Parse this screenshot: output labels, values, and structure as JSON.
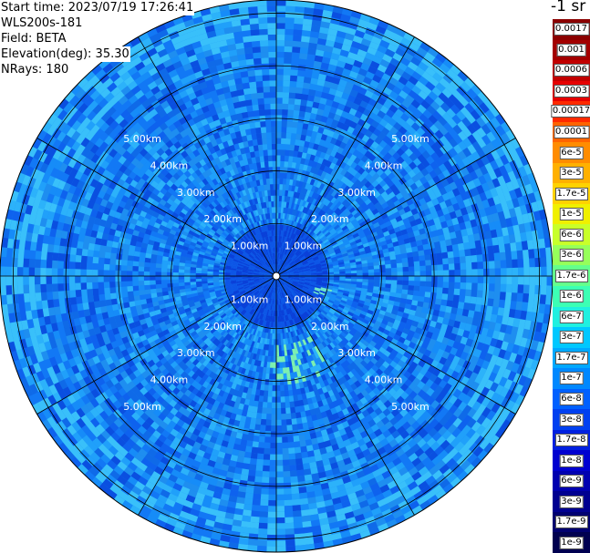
{
  "info": {
    "start_time": "Start time: 2023/07/19 17:26:41",
    "instrument": "WLS200s-181",
    "field": "Field: BETA",
    "elevation": "Elevation(deg): 35.30",
    "nrays": "NRays: 180"
  },
  "chart_data": {
    "type": "polar_ppi_heatmap",
    "field": "BETA",
    "units": "-1 sr",
    "nrays": 180,
    "elevation_deg": 35.3,
    "range_rings_km": [
      1,
      2,
      3,
      4,
      5
    ],
    "range_ring_labels": [
      "1.00km",
      "2.00km",
      "3.00km",
      "4.00km",
      "5.00km"
    ],
    "spokes_deg": [
      0,
      30,
      60,
      90,
      120,
      150,
      180,
      210,
      240,
      270,
      300,
      330
    ],
    "max_range_km": 5.25,
    "background_level_index": 3,
    "colorbar": {
      "title": "-1 sr",
      "ticks": [
        "0.0017",
        "0.001",
        "0.0006",
        "0.0003",
        "0.00017",
        "0.0001",
        "6e-5",
        "3e-5",
        "1.7e-5",
        "1e-5",
        "6e-6",
        "3e-6",
        "1.7e-6",
        "1e-6",
        "6e-7",
        "3e-7",
        "1.7e-7",
        "1e-7",
        "6e-8",
        "3e-8",
        "1.7e-8",
        "1e-8",
        "6e-9",
        "3e-9",
        "1.7e-9",
        "1e-9"
      ],
      "colors": [
        "#8b0000",
        "#a30000",
        "#c20000",
        "#e60000",
        "#ff2a00",
        "#ff6400",
        "#ff8c00",
        "#ffb000",
        "#ffd200",
        "#f0f000",
        "#c8ff2a",
        "#96ff5a",
        "#64ff8c",
        "#3cffb4",
        "#20f0e0",
        "#00c8ff",
        "#00a8ff",
        "#0088ff",
        "#0060ff",
        "#0040f0",
        "#0020e0",
        "#0000d0",
        "#0000b0",
        "#000090",
        "#000070",
        "#000050"
      ]
    }
  }
}
